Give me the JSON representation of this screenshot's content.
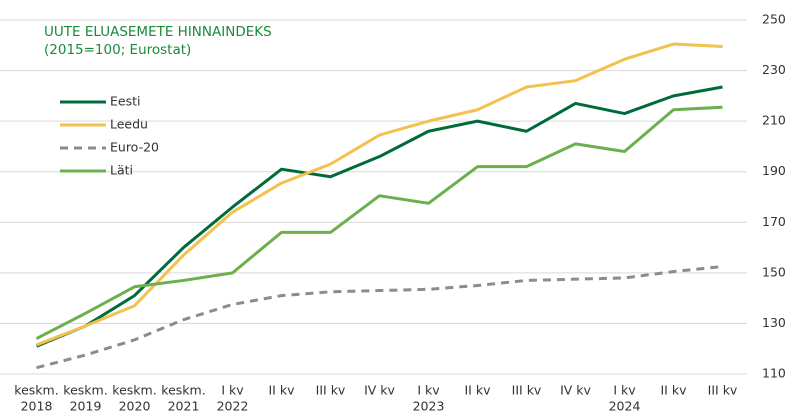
{
  "chart_data": {
    "type": "line",
    "title": "UUTE ELUASEMETE HINNAINDEKS",
    "subtitle": "(2015=100; Eurostat)",
    "categories": [
      [
        "keskm.",
        "2018"
      ],
      [
        "keskm.",
        "2019"
      ],
      [
        "keskm.",
        "2020"
      ],
      [
        "keskm.",
        "2021"
      ],
      [
        "I kv",
        "2022"
      ],
      [
        "II kv"
      ],
      [
        "III kv"
      ],
      [
        "IV kv"
      ],
      [
        "I kv",
        "2023"
      ],
      [
        "II kv"
      ],
      [
        "III kv"
      ],
      [
        "IV kv"
      ],
      [
        "I kv",
        "2024"
      ],
      [
        "II kv"
      ],
      [
        "III kv"
      ]
    ],
    "series": [
      {
        "name": "Eesti",
        "color": "#006b3a",
        "style": "solid",
        "values": [
          121,
          129,
          141,
          160,
          176,
          191,
          188,
          196,
          206,
          210,
          206,
          217,
          213,
          220,
          223.5
        ]
      },
      {
        "name": "Leedu",
        "color": "#f2c14e",
        "style": "solid",
        "values": [
          121.5,
          129,
          137,
          157,
          174,
          185.5,
          193,
          204.5,
          210,
          214.5,
          223.5,
          226,
          234.5,
          240.5,
          239.5
        ]
      },
      {
        "name": "Euro-20",
        "color": "#8c8c8c",
        "style": "dashed",
        "values": [
          112.5,
          117.5,
          123.5,
          131.5,
          137.5,
          141,
          142.5,
          143,
          143.5,
          145,
          147,
          147.5,
          148,
          150.5,
          152.5
        ]
      },
      {
        "name": "Läti",
        "color": "#6ab04c",
        "style": "solid",
        "values": [
          124,
          134,
          144.5,
          147,
          150,
          166,
          166,
          180.5,
          177.5,
          192,
          192,
          201,
          198,
          214.5,
          215.5
        ]
      }
    ],
    "ylim": [
      110,
      250
    ],
    "yticks": [
      110,
      130,
      150,
      170,
      190,
      210,
      230,
      250
    ],
    "grid": true,
    "y_axis_side": "right"
  }
}
